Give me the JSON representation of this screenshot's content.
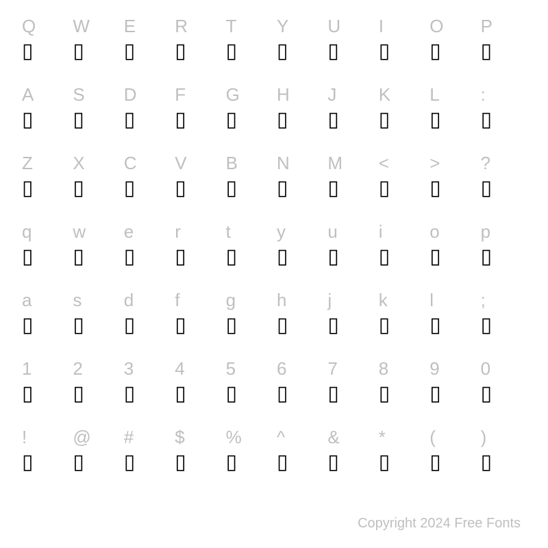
{
  "colors": {
    "label_color": "#bfbfbf",
    "glyph_color": "#000000",
    "background_color": "#ffffff",
    "footer_color": "#bfbfbf"
  },
  "typography": {
    "label_fontsize": 26,
    "glyph_fontsize": 30,
    "footer_fontsize": 20
  },
  "glyph_placeholder": "▯",
  "rows": [
    [
      "Q",
      "W",
      "E",
      "R",
      "T",
      "Y",
      "U",
      "I",
      "O",
      "P"
    ],
    [
      "A",
      "S",
      "D",
      "F",
      "G",
      "H",
      "J",
      "K",
      "L",
      ":"
    ],
    [
      "Z",
      "X",
      "C",
      "V",
      "B",
      "N",
      "M",
      "<",
      ">",
      "?"
    ],
    [
      "q",
      "w",
      "e",
      "r",
      "t",
      "y",
      "u",
      "i",
      "o",
      "p"
    ],
    [
      "a",
      "s",
      "d",
      "f",
      "g",
      "h",
      "j",
      "k",
      "l",
      ";"
    ],
    [
      "1",
      "2",
      "3",
      "4",
      "5",
      "6",
      "7",
      "8",
      "9",
      "0"
    ],
    [
      "!",
      "@",
      "#",
      "$",
      "%",
      "^",
      "&",
      "*",
      "(",
      ")"
    ]
  ],
  "footer": "Copyright 2024 Free Fonts"
}
